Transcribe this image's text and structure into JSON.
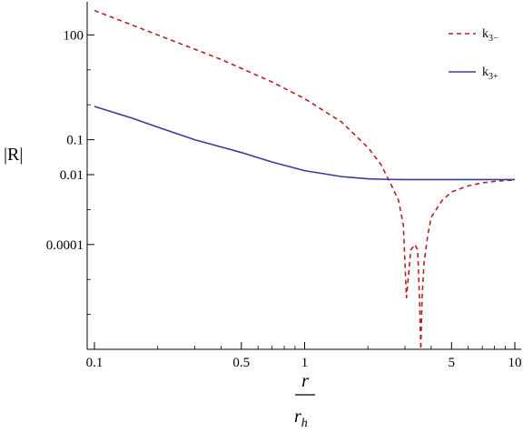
{
  "chart_data": {
    "type": "line",
    "x_scale": "log",
    "y_scale": "log",
    "xlim": [
      0.1,
      10
    ],
    "ylim": [
      1e-07,
      1000
    ],
    "x_ticks": [
      {
        "value": 0.1,
        "label": "0.1"
      },
      {
        "value": 0.5,
        "label": "0.5"
      },
      {
        "value": 1,
        "label": "1"
      },
      {
        "value": 5,
        "label": "5"
      },
      {
        "value": 10,
        "label": "10"
      }
    ],
    "y_ticks": [
      {
        "value": 100,
        "label": "100"
      },
      {
        "value": 0.1,
        "label": "0.1"
      },
      {
        "value": 0.01,
        "label": "0.01"
      },
      {
        "value": 0.0001,
        "label": "0.0001"
      }
    ],
    "ylabel": "|R|",
    "xlabel_numerator": "r",
    "xlabel_denominator": "r",
    "xlabel_denominator_sub": "h",
    "grid": false,
    "legend_position": "top-right",
    "series": [
      {
        "name": "k3−",
        "name_main": "k",
        "name_sub": "3−",
        "color": "#b22222",
        "style": "dashed",
        "x": [
          0.1,
          0.2,
          0.4,
          0.7,
          1.0,
          1.5,
          2.0,
          2.3,
          2.55,
          2.8,
          2.95,
          3.05,
          3.2,
          3.35,
          3.45,
          3.52,
          3.57,
          3.62,
          3.7,
          3.85,
          4.0,
          4.5,
          5.0,
          6.0,
          7.0,
          8.0,
          9.0,
          10.0
        ],
        "y": [
          500,
          100,
          20,
          4.5,
          1.5,
          0.32,
          0.06,
          0.02,
          0.006,
          0.0018,
          0.00035,
          3e-06,
          7e-05,
          0.0001,
          7e-05,
          3e-06,
          1e-07,
          3e-06,
          3e-05,
          0.00018,
          0.0006,
          0.0018,
          0.0032,
          0.0048,
          0.0058,
          0.0064,
          0.0068,
          0.007
        ]
      },
      {
        "name": "k3+",
        "name_main": "k",
        "name_sub": "3+",
        "color": "#3a3a9a",
        "style": "solid",
        "x": [
          0.1,
          0.15,
          0.2,
          0.3,
          0.5,
          0.7,
          1.0,
          1.5,
          2.0,
          2.5,
          3.0,
          4.0,
          5.0,
          7.0,
          10.0
        ],
        "y": [
          0.9,
          0.42,
          0.23,
          0.1,
          0.043,
          0.023,
          0.013,
          0.0088,
          0.0076,
          0.0073,
          0.0072,
          0.0072,
          0.0072,
          0.0072,
          0.0072
        ]
      }
    ]
  }
}
